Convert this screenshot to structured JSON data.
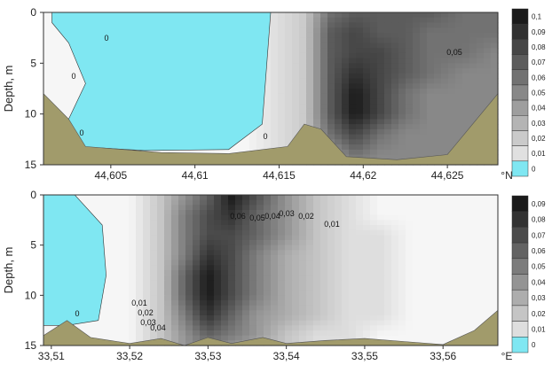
{
  "chart_data": [
    {
      "type": "heatmap",
      "ylabel": "Depth, m",
      "y_ticks": [
        "0",
        "5",
        "10",
        "15"
      ],
      "y_range": [
        0,
        15
      ],
      "x_range": [
        44.601,
        44.628
      ],
      "x_ticks": [
        "44,605",
        "44,61",
        "44,615",
        "44,62",
        "44,625"
      ],
      "x_unit": "°N",
      "colorbar": [
        "0,1",
        "0,09",
        "0,08",
        "0,07",
        "0,06",
        "0,05",
        "0,04",
        "0,03",
        "0,02",
        "0,01",
        "0"
      ],
      "contour_labels": [
        "0",
        "0",
        "0",
        "0",
        "0,05"
      ],
      "field": {
        "x": [
          44.601,
          44.605,
          44.609,
          44.613,
          44.6165,
          44.618,
          44.6195,
          44.621,
          44.6225,
          44.624,
          44.626,
          44.628
        ],
        "y": [
          0,
          2,
          4,
          6,
          8,
          10,
          12,
          14,
          15
        ],
        "values": [
          [
            0.0,
            0.0,
            0.0,
            0.0,
            0.02,
            0.06,
            0.07,
            0.07,
            0.07,
            0.07,
            0.06,
            0.06
          ],
          [
            0.0,
            0.0,
            0.0,
            0.0,
            0.02,
            0.07,
            0.08,
            0.07,
            0.07,
            0.06,
            0.06,
            0.06
          ],
          [
            0.0,
            0.0,
            0.0,
            0.0,
            0.02,
            0.07,
            0.08,
            0.08,
            0.07,
            0.06,
            0.06,
            0.05
          ],
          [
            0.0,
            0.0,
            0.0,
            0.0,
            0.02,
            0.07,
            0.09,
            0.08,
            0.07,
            0.06,
            0.05,
            0.05
          ],
          [
            0.0,
            0.0,
            0.0,
            0.0,
            0.02,
            0.07,
            0.1,
            0.08,
            0.06,
            0.05,
            0.05,
            0.05
          ],
          [
            0.0,
            0.0,
            0.0,
            0.0,
            0.02,
            0.07,
            0.1,
            0.08,
            0.06,
            0.05,
            0.05,
            0.05
          ],
          [
            0.0,
            0.0,
            0.0,
            0.0,
            0.02,
            0.06,
            0.08,
            0.06,
            0.05,
            0.05,
            0.05,
            0.05
          ],
          [
            0.0,
            0.0,
            0.0,
            0.0,
            0.02,
            0.04,
            0.06,
            0.05,
            0.05,
            0.05,
            0.05,
            0.05
          ],
          [
            0.0,
            0.0,
            0.0,
            0.0,
            0.02,
            0.04,
            0.05,
            0.05,
            0.05,
            0.05,
            0.05,
            0.05
          ]
        ]
      },
      "water_region": [
        [
          44.6015,
          0
        ],
        [
          44.6145,
          0
        ],
        [
          44.614,
          11
        ],
        [
          44.612,
          13.5
        ],
        [
          44.607,
          13.6
        ],
        [
          44.603,
          13.2
        ],
        [
          44.6025,
          10.5
        ],
        [
          44.6035,
          7
        ],
        [
          44.6025,
          3
        ],
        [
          44.6015,
          1
        ]
      ],
      "bottom_profile": [
        [
          44.601,
          8
        ],
        [
          44.6025,
          10.5
        ],
        [
          44.6035,
          13.2
        ],
        [
          44.608,
          13.8
        ],
        [
          44.612,
          13.9
        ],
        [
          44.6155,
          13.2
        ],
        [
          44.6165,
          11
        ],
        [
          44.6175,
          11.5
        ],
        [
          44.619,
          14.2
        ],
        [
          44.622,
          14.5
        ],
        [
          44.625,
          14
        ],
        [
          44.627,
          10
        ],
        [
          44.628,
          8
        ]
      ],
      "colors": {
        "water": "#7fe7f2",
        "bottom": "#a19b6b"
      }
    },
    {
      "type": "heatmap",
      "ylabel": "Depth, m",
      "y_ticks": [
        "0",
        "5",
        "10",
        "15"
      ],
      "y_range": [
        0,
        15
      ],
      "x_range": [
        33.509,
        33.567
      ],
      "x_ticks": [
        "33,51",
        "33,52",
        "33,53",
        "33,54",
        "33,55",
        "33,56"
      ],
      "x_unit": "°E",
      "colorbar": [
        "0,09",
        "0,08",
        "0,07",
        "0,06",
        "0,05",
        "0,04",
        "0,03",
        "0,02",
        "0,01",
        "0"
      ],
      "contour_labels": [
        "0",
        "0,01",
        "0,02",
        "0,03",
        "0,04",
        "0,01",
        "0,02",
        "0,03",
        "0,04",
        "0,05",
        "0,06"
      ],
      "field": {
        "x": [
          33.509,
          33.516,
          33.52,
          33.524,
          33.527,
          33.53,
          33.533,
          33.536,
          33.54,
          33.544,
          33.548,
          33.552,
          33.556,
          33.56,
          33.567
        ],
        "y": [
          0,
          2,
          4,
          6,
          8,
          10,
          12,
          14,
          15
        ],
        "values": [
          [
            0.0,
            0.0,
            0.0,
            0.02,
            0.04,
            0.06,
            0.09,
            0.07,
            0.04,
            0.02,
            0.01,
            0.0,
            0.0,
            0.0,
            0.0
          ],
          [
            0.0,
            0.0,
            0.0,
            0.02,
            0.05,
            0.07,
            0.08,
            0.06,
            0.04,
            0.02,
            0.01,
            0.0,
            0.0,
            0.0,
            0.0
          ],
          [
            0.0,
            0.0,
            0.0,
            0.02,
            0.05,
            0.07,
            0.07,
            0.06,
            0.04,
            0.02,
            0.01,
            0.01,
            0.0,
            0.0,
            0.0
          ],
          [
            0.0,
            0.0,
            0.0,
            0.02,
            0.05,
            0.08,
            0.07,
            0.05,
            0.03,
            0.02,
            0.01,
            0.01,
            0.0,
            0.0,
            0.0
          ],
          [
            0.0,
            0.0,
            0.0,
            0.02,
            0.06,
            0.09,
            0.07,
            0.05,
            0.03,
            0.02,
            0.01,
            0.01,
            0.0,
            0.0,
            0.0
          ],
          [
            0.0,
            0.0,
            0.0,
            0.02,
            0.06,
            0.09,
            0.07,
            0.05,
            0.03,
            0.02,
            0.01,
            0.01,
            0.0,
            0.0,
            0.0
          ],
          [
            0.0,
            0.0,
            0.0,
            0.02,
            0.05,
            0.08,
            0.06,
            0.04,
            0.03,
            0.02,
            0.01,
            0.01,
            0.0,
            0.0,
            0.0
          ],
          [
            0.0,
            0.0,
            0.0,
            0.02,
            0.04,
            0.06,
            0.05,
            0.04,
            0.02,
            0.01,
            0.01,
            0.0,
            0.0,
            0.0,
            0.0
          ],
          [
            0.0,
            0.0,
            0.0,
            0.02,
            0.04,
            0.05,
            0.04,
            0.03,
            0.02,
            0.01,
            0.01,
            0.0,
            0.0,
            0.0,
            0.0
          ]
        ]
      },
      "water_region": [
        [
          33.509,
          0
        ],
        [
          33.513,
          0
        ],
        [
          33.5165,
          3
        ],
        [
          33.517,
          8
        ],
        [
          33.516,
          12.5
        ],
        [
          33.512,
          13
        ],
        [
          33.509,
          13
        ]
      ],
      "bottom_profile": [
        [
          33.509,
          14
        ],
        [
          33.512,
          12.5
        ],
        [
          33.515,
          14.2
        ],
        [
          33.52,
          14.8
        ],
        [
          33.524,
          14.3
        ],
        [
          33.527,
          15
        ],
        [
          33.53,
          14.2
        ],
        [
          33.533,
          14.8
        ],
        [
          33.537,
          14.2
        ],
        [
          33.54,
          14.8
        ],
        [
          33.545,
          14.5
        ],
        [
          33.55,
          14.3
        ],
        [
          33.555,
          14.6
        ],
        [
          33.56,
          14.9
        ],
        [
          33.564,
          13.5
        ],
        [
          33.567,
          11.5
        ]
      ],
      "colors": {
        "water": "#7fe7f2",
        "bottom": "#a19b6b"
      }
    }
  ]
}
